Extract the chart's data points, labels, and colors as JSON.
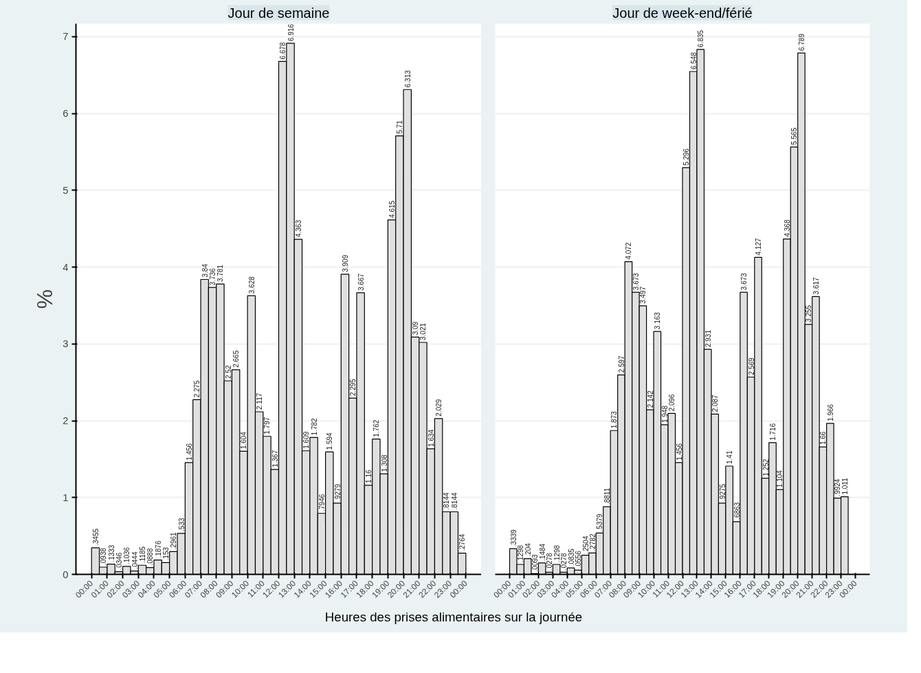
{
  "chart_data": [
    {
      "type": "histogram",
      "title": "Jour de semaine",
      "xlabel": "Heures des prises alimentaires sur la journée",
      "ylabel": "%",
      "color": "#e0e0e0",
      "grid": "y",
      "bins": [
        0,
        0.5,
        1,
        1.5,
        2,
        2.5,
        3,
        3.5,
        4,
        4.5,
        5,
        5.5,
        6,
        6.5,
        7,
        7.5,
        8,
        8.5,
        9,
        9.5,
        10,
        10.5,
        11,
        11.5,
        12,
        12.5,
        13,
        13.5,
        14,
        14.5,
        15,
        15.5,
        16,
        16.5,
        17,
        17.5,
        18,
        18.5,
        19,
        19.5,
        20,
        20.5,
        21,
        21.5,
        22,
        22.5,
        23,
        23.5,
        24
      ],
      "values": [
        0.3455,
        0.0938,
        0.1333,
        0.0346,
        0.1036,
        0.0444,
        0.1185,
        0.0888,
        0.1876,
        0.153,
        0.2961,
        0.533,
        1.456,
        2.275,
        3.84,
        3.736,
        3.781,
        2.52,
        2.665,
        1.604,
        3.628,
        2.117,
        1.797,
        1.367,
        6.678,
        6.916,
        4.363,
        1.609,
        1.782,
        0.7946,
        1.594,
        0.9279,
        3.909,
        2.295,
        3.667,
        1.16,
        1.762,
        1.308,
        4.615,
        5.71,
        6.313,
        3.09,
        3.021,
        1.634,
        2.029,
        0.8144,
        0.8144,
        0.2764
      ],
      "value_labels": [
        ".3455",
        ".0938",
        ".1333",
        ".0346",
        ".1036",
        ".0444",
        ".1185",
        ".0888",
        ".1876",
        ".153",
        ".2961",
        ".533",
        "1.456",
        "2.275",
        "3.84",
        "3.736",
        "3.781",
        "2.52",
        "2.665",
        "1.604",
        "3.628",
        "2.117",
        "1.797",
        "1.367",
        "6.678",
        "6.916",
        "4.363",
        "1.609",
        "1.782",
        ".7946",
        "1.594",
        ".9279",
        "3.909",
        "2.295",
        "3.667",
        "1.16",
        "1.762",
        "1.308",
        "4.615",
        "5.71",
        "6.313",
        "3.09",
        "3.021",
        "1.634",
        "2.029",
        ".8144",
        ".8144",
        ".2764"
      ],
      "xlim": [
        -1,
        25
      ],
      "ylim": [
        0,
        7.17
      ],
      "xticks": [
        {
          "value": 0,
          "label": "00:00"
        },
        {
          "value": 1,
          "label": "01:00"
        },
        {
          "value": 2,
          "label": "02:00"
        },
        {
          "value": 3,
          "label": "03:00"
        },
        {
          "value": 4,
          "label": "04:00"
        },
        {
          "value": 5,
          "label": "05:00"
        },
        {
          "value": 6,
          "label": "06:00"
        },
        {
          "value": 7,
          "label": "07:00"
        },
        {
          "value": 8,
          "label": "08:00"
        },
        {
          "value": 9,
          "label": "09:00"
        },
        {
          "value": 10,
          "label": "10:00"
        },
        {
          "value": 11,
          "label": "11:00"
        },
        {
          "value": 12,
          "label": "12:00"
        },
        {
          "value": 13,
          "label": "13:00"
        },
        {
          "value": 14,
          "label": "14:00"
        },
        {
          "value": 15,
          "label": "15:00"
        },
        {
          "value": 16,
          "label": "16:00"
        },
        {
          "value": 17,
          "label": "17:00"
        },
        {
          "value": 18,
          "label": "18:00"
        },
        {
          "value": 19,
          "label": "19:00"
        },
        {
          "value": 20,
          "label": "20:00"
        },
        {
          "value": 21,
          "label": "21:00"
        },
        {
          "value": 22,
          "label": "22:00"
        },
        {
          "value": 23,
          "label": "23:00"
        },
        {
          "value": 24,
          "label": "00:00"
        }
      ],
      "yticks": [
        0,
        1,
        2,
        3,
        4,
        5,
        6,
        7
      ]
    },
    {
      "type": "histogram",
      "title": "Jour de week-end/férié",
      "color": "#e0e0e0",
      "grid": "y",
      "tick_labels": "x",
      "bins": [
        0,
        0.5,
        1,
        1.5,
        2,
        2.5,
        3,
        3.5,
        4,
        4.5,
        5,
        5.5,
        6,
        6.5,
        7,
        7.5,
        8,
        8.5,
        9,
        9.5,
        10,
        10.5,
        11,
        11.5,
        12,
        12.5,
        13,
        13.5,
        14,
        14.5,
        15,
        15.5,
        16,
        16.5,
        17,
        17.5,
        18,
        18.5,
        19,
        19.5,
        20,
        20.5,
        21,
        21.5,
        22,
        22.5,
        23,
        23.5
      ],
      "values": [
        0.3339,
        0.1298,
        0.204,
        0.0093,
        0.1484,
        0.0278,
        0.1298,
        0.0278,
        0.0835,
        0.0556,
        0.2504,
        0.2782,
        0.5379,
        0.8811,
        1.873,
        2.597,
        4.072,
        3.673,
        3.497,
        2.142,
        3.163,
        1.948,
        2.096,
        1.456,
        5.296,
        6.548,
        6.835,
        2.931,
        2.087,
        0.9275,
        1.41,
        0.6863,
        3.673,
        2.569,
        4.127,
        1.252,
        1.716,
        1.104,
        4.368,
        5.565,
        6.789,
        3.255,
        3.617,
        1.66,
        1.966,
        0.9924,
        1.011
      ],
      "value_labels": [
        ".3339",
        ".1298",
        ".204",
        ".0093",
        ".1484",
        ".0278",
        ".1298",
        ".0278",
        ".0835",
        ".0556",
        ".2504",
        ".2782",
        ".5379",
        ".8811",
        "1.873",
        "2.597",
        "4.072",
        "3.673",
        "3.497",
        "2.142",
        "3.163",
        "1.948",
        "2.096",
        "1.456",
        "5.296",
        "6.548",
        "6.835",
        "2.931",
        "2.087",
        ".9275",
        "1.41",
        ".6863",
        "3.673",
        "2.569",
        "4.127",
        "1.252",
        "1.716",
        "1.104",
        "4.368",
        "5.565",
        "6.789",
        "3.255",
        "3.617",
        "1.66",
        "1.966",
        ".9924",
        "1.011"
      ],
      "xlim": [
        -1,
        25
      ],
      "ylim": [
        0,
        7.17
      ],
      "xticks": [
        {
          "value": 0,
          "label": "00:00"
        },
        {
          "value": 1,
          "label": "01:00"
        },
        {
          "value": 2,
          "label": "02:00"
        },
        {
          "value": 3,
          "label": "03:00"
        },
        {
          "value": 4,
          "label": "04:00"
        },
        {
          "value": 5,
          "label": "05:00"
        },
        {
          "value": 6,
          "label": "06:00"
        },
        {
          "value": 7,
          "label": "07:00"
        },
        {
          "value": 8,
          "label": "08:00"
        },
        {
          "value": 9,
          "label": "09:00"
        },
        {
          "value": 10,
          "label": "10:00"
        },
        {
          "value": 11,
          "label": "11:00"
        },
        {
          "value": 12,
          "label": "12:00"
        },
        {
          "value": 13,
          "label": "13:00"
        },
        {
          "value": 14,
          "label": "14:00"
        },
        {
          "value": 15,
          "label": "15:00"
        },
        {
          "value": 16,
          "label": "16:00"
        },
        {
          "value": 17,
          "label": "17:00"
        },
        {
          "value": 18,
          "label": "18:00"
        },
        {
          "value": 19,
          "label": "19:00"
        },
        {
          "value": 20,
          "label": "20:00"
        },
        {
          "value": 21,
          "label": "21:00"
        },
        {
          "value": 22,
          "label": "22:00"
        },
        {
          "value": 23,
          "label": "23:00"
        },
        {
          "value": 24,
          "label": "00:00"
        }
      ],
      "yticks": [
        0,
        1,
        2,
        3,
        4,
        5,
        6,
        7
      ]
    }
  ]
}
